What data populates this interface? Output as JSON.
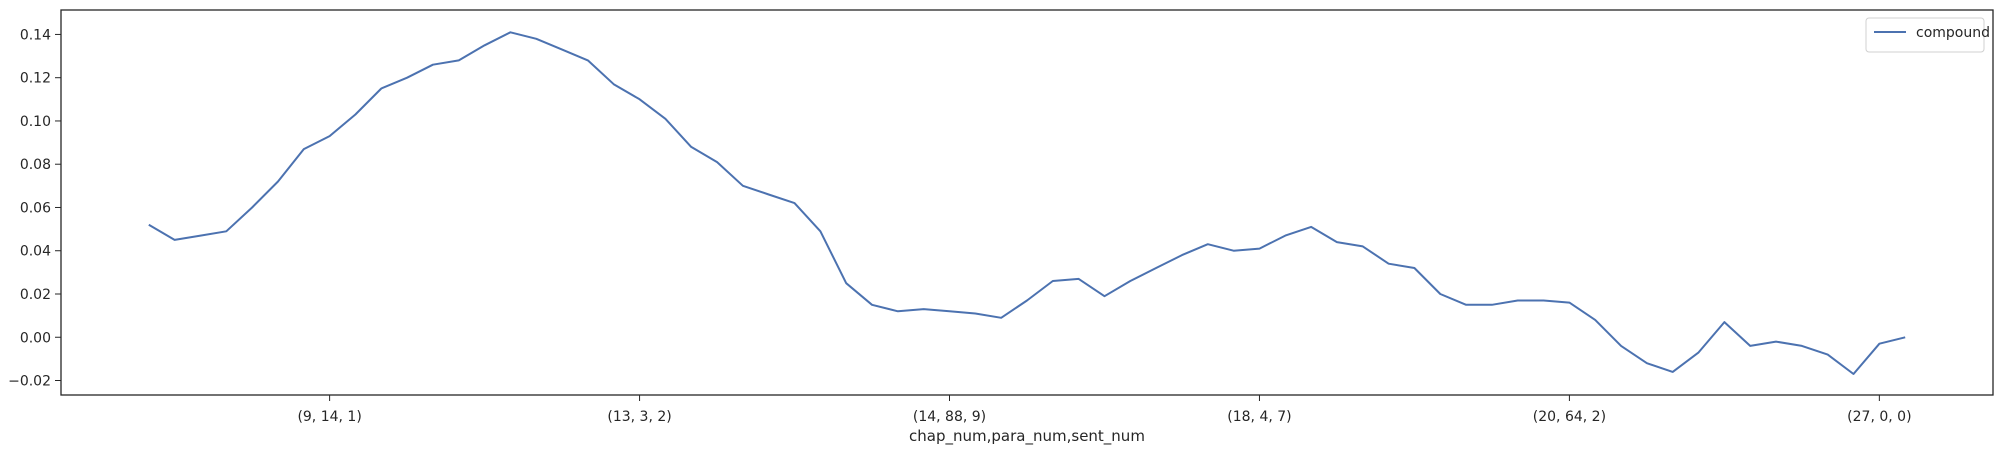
{
  "chart_data": {
    "type": "line",
    "x_label": "chap_num,para_num,sent_num",
    "categories": [
      null,
      null,
      null,
      null,
      null,
      null,
      null,
      "(9, 14, 1)",
      null,
      null,
      null,
      null,
      null,
      null,
      null,
      null,
      null,
      null,
      null,
      "(13, 3, 2)",
      null,
      null,
      null,
      null,
      null,
      null,
      null,
      null,
      null,
      null,
      null,
      "(14, 88, 9)",
      null,
      null,
      null,
      null,
      null,
      null,
      null,
      null,
      null,
      null,
      null,
      "(18, 4, 7)",
      null,
      null,
      null,
      null,
      null,
      null,
      null,
      null,
      null,
      null,
      null,
      "(20, 64, 2)",
      null,
      null,
      null,
      null,
      null,
      null,
      null,
      null,
      null,
      null,
      null,
      "(27, 0, 0)",
      null
    ],
    "series": [
      {
        "name": "compound",
        "color": "#4c72b0",
        "values": [
          0.052,
          0.045,
          0.047,
          0.049,
          0.06,
          0.072,
          0.087,
          0.093,
          0.103,
          0.115,
          0.12,
          0.126,
          0.128,
          0.135,
          0.141,
          0.138,
          0.133,
          0.128,
          0.117,
          0.11,
          0.101,
          0.088,
          0.081,
          0.07,
          0.066,
          0.062,
          0.049,
          0.025,
          0.015,
          0.012,
          0.013,
          0.012,
          0.011,
          0.009,
          0.017,
          0.026,
          0.027,
          0.019,
          0.026,
          0.032,
          0.038,
          0.043,
          0.04,
          0.041,
          0.047,
          0.051,
          0.044,
          0.042,
          0.034,
          0.032,
          0.02,
          0.015,
          0.015,
          0.017,
          0.017,
          0.016,
          0.008,
          -0.004,
          -0.012,
          -0.016,
          -0.007,
          0.007,
          -0.004,
          -0.002,
          -0.004,
          -0.008,
          -0.017,
          -0.003,
          0.0
        ]
      }
    ],
    "xlim": [
      -3.4,
      71.4
    ],
    "ylim": [
      -0.0267,
      0.1513
    ],
    "yticks": [
      {
        "value": -0.02,
        "label": "−0.02"
      },
      {
        "value": 0,
        "label": "0.00"
      },
      {
        "value": 0.02,
        "label": "0.02"
      },
      {
        "value": 0.04,
        "label": "0.04"
      },
      {
        "value": 0.06,
        "label": "0.06"
      },
      {
        "value": 0.08,
        "label": "0.08"
      },
      {
        "value": 0.1,
        "label": "0.10"
      },
      {
        "value": 0.12,
        "label": "0.12"
      },
      {
        "value": 0.14,
        "label": "0.14"
      }
    ],
    "legend": "upper right"
  }
}
